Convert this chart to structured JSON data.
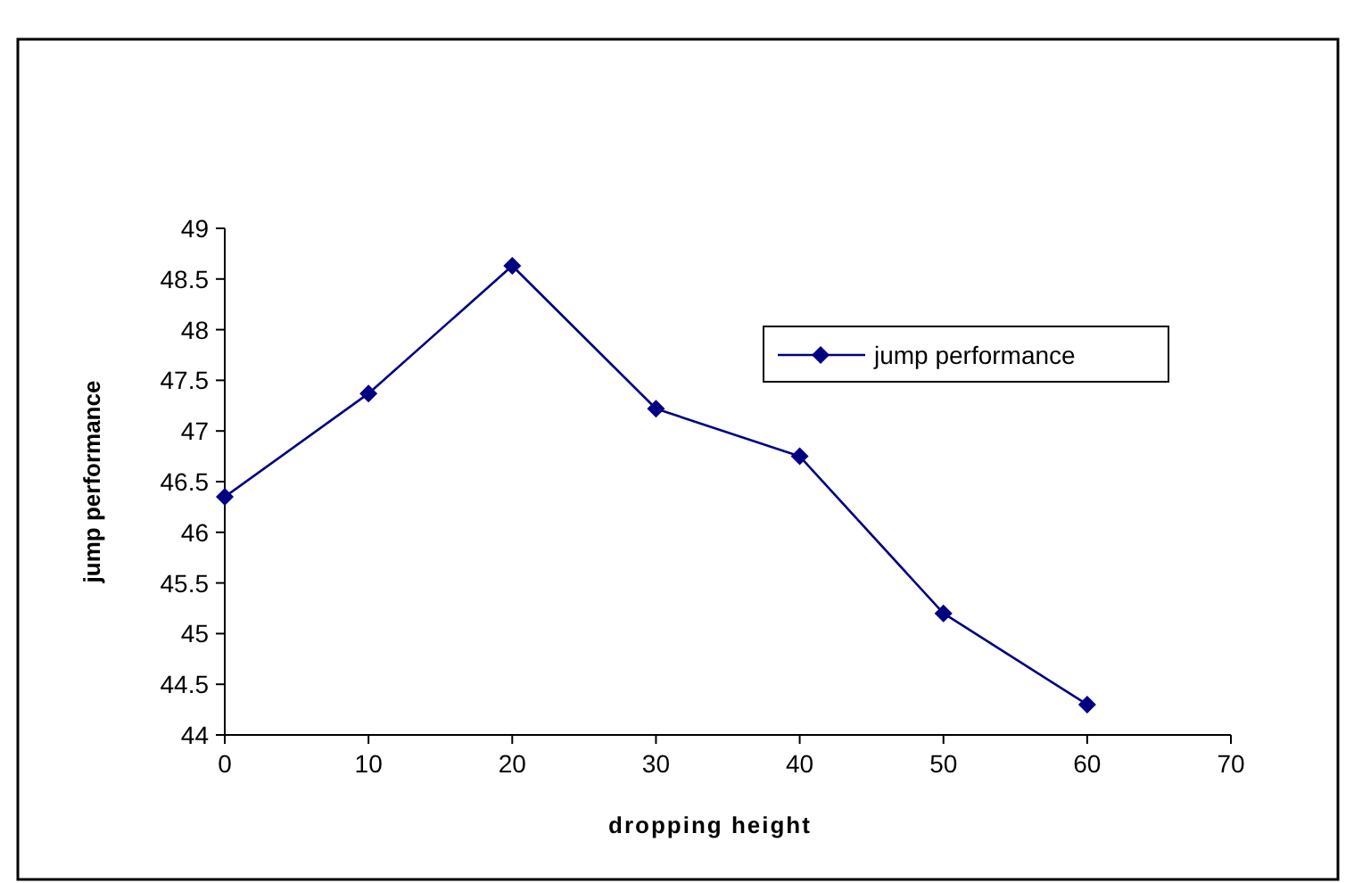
{
  "chart_data": {
    "type": "line",
    "xlabel": "dropping height",
    "ylabel": "jump performance",
    "x": [
      0,
      10,
      20,
      30,
      40,
      50,
      60
    ],
    "series": [
      {
        "name": "jump performance",
        "color": "#000080",
        "values": [
          46.35,
          47.37,
          48.63,
          47.22,
          46.75,
          45.2,
          44.3
        ]
      }
    ],
    "xlim": [
      0,
      70
    ],
    "xticks": [
      0,
      10,
      20,
      30,
      40,
      50,
      60,
      70
    ],
    "ylim": [
      44,
      49
    ],
    "yticks": [
      44,
      44.5,
      45,
      45.5,
      46,
      46.5,
      47,
      47.5,
      48,
      48.5,
      49
    ],
    "marker": "diamond",
    "legend": "top right",
    "grid": false
  }
}
